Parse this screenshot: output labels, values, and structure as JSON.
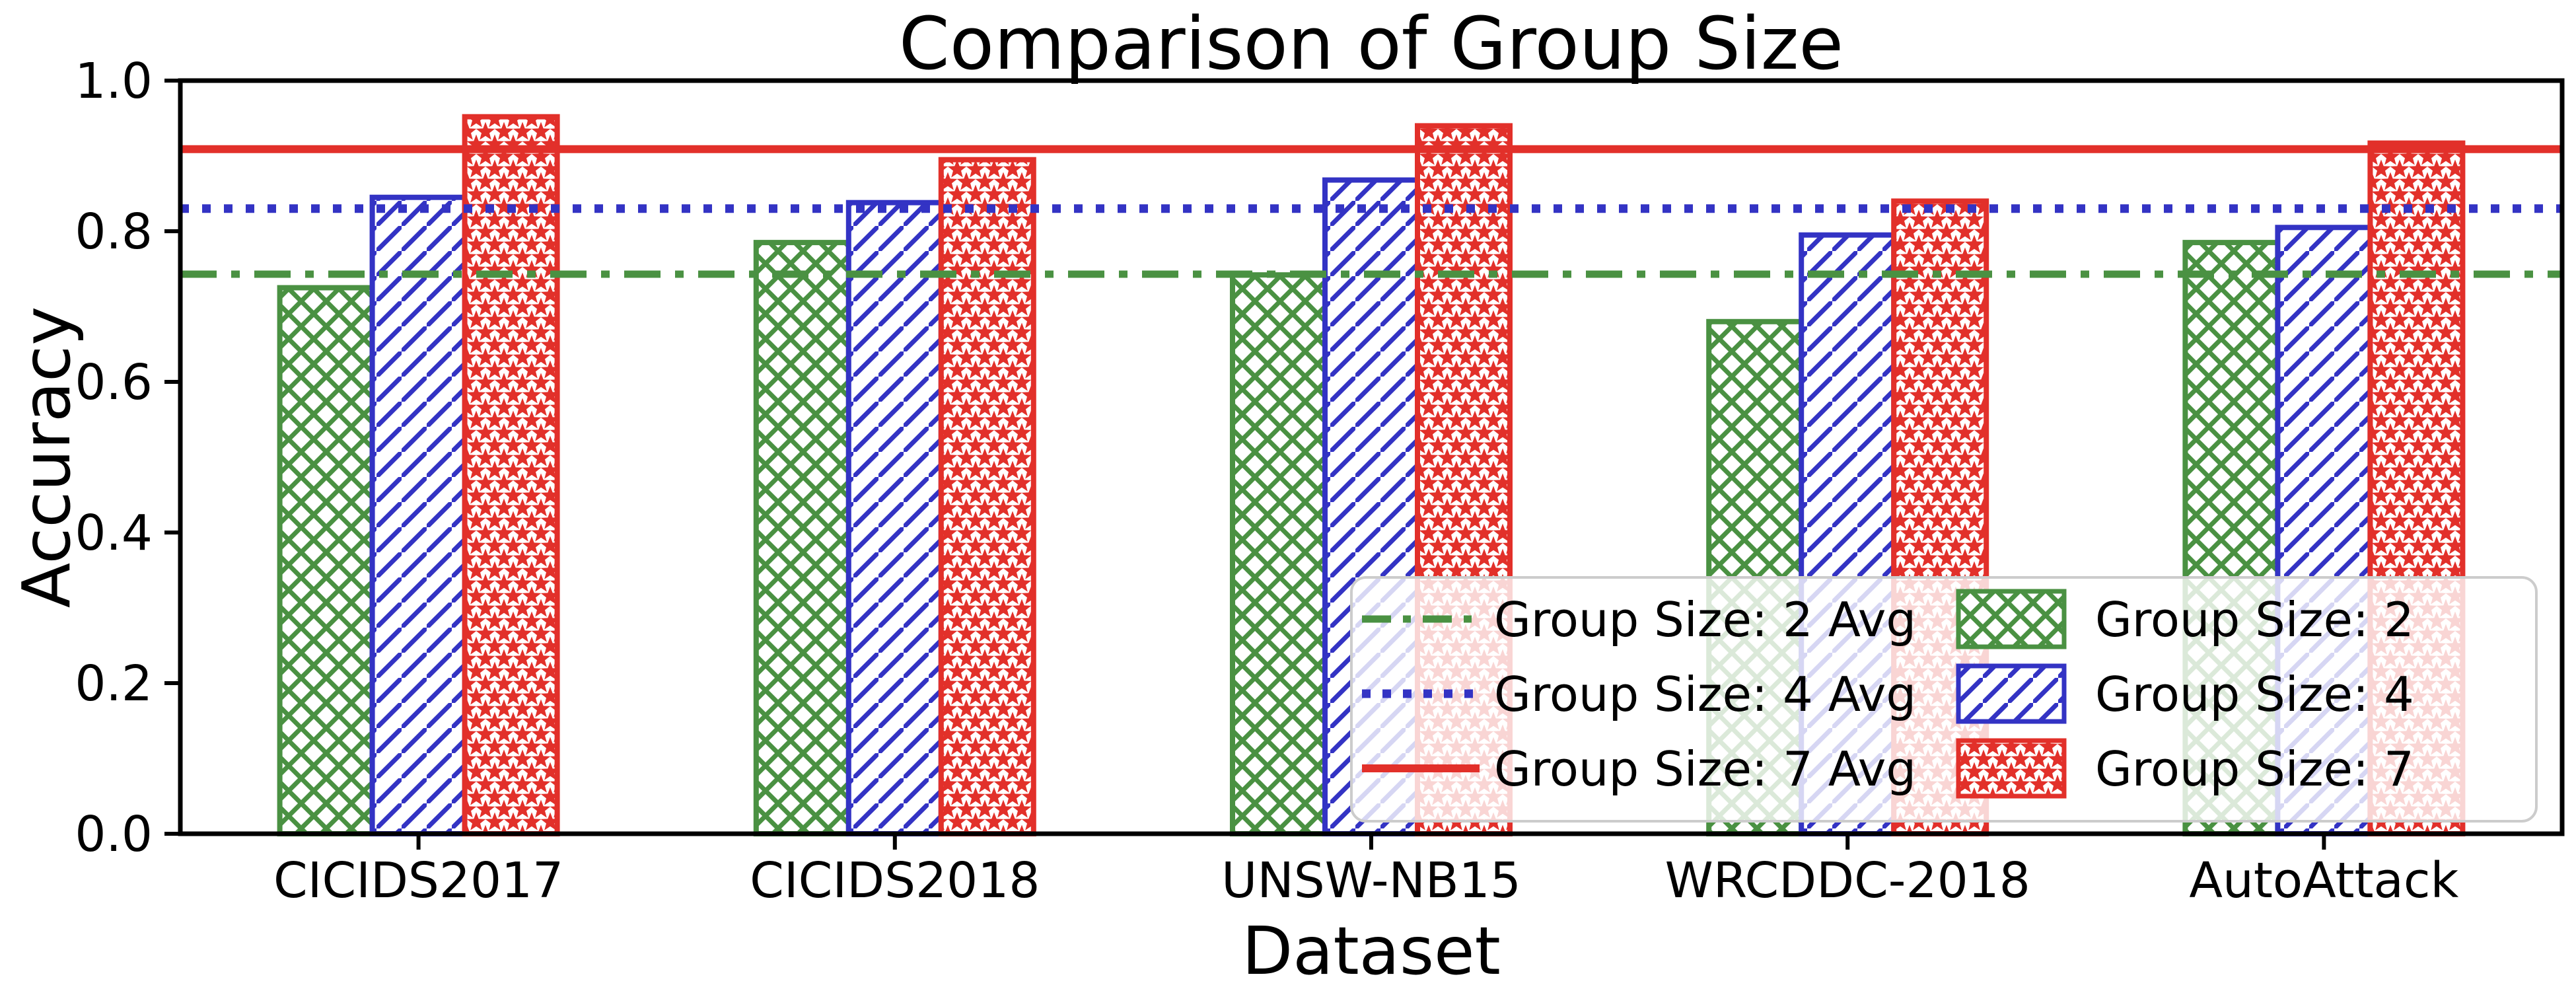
{
  "chart_data": {
    "type": "bar",
    "title": "Comparison of Group Size",
    "xlabel": "Dataset",
    "ylabel": "Accuracy",
    "ylim": [
      0.0,
      1.0
    ],
    "yticks": [
      0.0,
      0.2,
      0.4,
      0.6,
      0.8,
      1.0
    ],
    "categories": [
      "CICIDS2017",
      "CICIDS2018",
      "UNSW-NB15",
      "WRCDDC-2018",
      "AutoAttack"
    ],
    "series": [
      {
        "name": "Group Size: 2",
        "color": "#4a9142",
        "hatch": "xx",
        "values": [
          0.725,
          0.785,
          0.742,
          0.68,
          0.785
        ]
      },
      {
        "name": "Group Size: 4",
        "color": "#3333c4",
        "hatch": "//",
        "values": [
          0.845,
          0.838,
          0.868,
          0.795,
          0.805
        ]
      },
      {
        "name": "Group Size: 7",
        "color": "#e2302a",
        "hatch": "**",
        "values": [
          0.952,
          0.895,
          0.94,
          0.84,
          0.917
        ]
      }
    ],
    "avg_lines": [
      {
        "name": "Group Size: 2 Avg",
        "color": "#4a9142",
        "style": "dashdot",
        "value": 0.743
      },
      {
        "name": "Group Size: 4 Avg",
        "color": "#3333c4",
        "style": "dotted",
        "value": 0.83
      },
      {
        "name": "Group Size: 7 Avg",
        "color": "#e2302a",
        "style": "solid",
        "value": 0.909
      }
    ],
    "legend_position": "lower right",
    "grid": false,
    "axis_color": "#000000",
    "legend_border_color": "#cccccc"
  }
}
